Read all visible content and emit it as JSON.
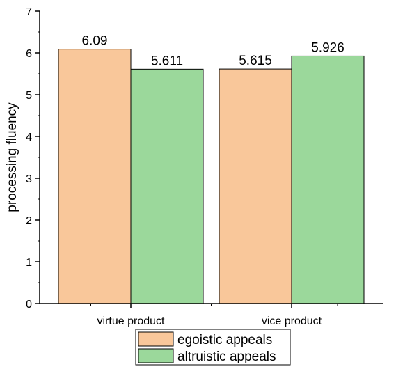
{
  "chart_data": {
    "type": "bar",
    "title": "",
    "xlabel": "",
    "ylabel": "processing fluency",
    "categories": [
      "virtue product",
      "vice product"
    ],
    "ylim": [
      0,
      7
    ],
    "yticks": [
      0,
      1,
      2,
      3,
      4,
      5,
      6,
      7
    ],
    "grid": false,
    "legend_position": "bottom-center",
    "series": [
      {
        "name": "egoistic appeals",
        "color": "#f9c79a",
        "values": [
          6.09,
          5.615
        ],
        "labels": [
          "6.09",
          "5.615"
        ]
      },
      {
        "name": "altruistic appeals",
        "color": "#9bd89b",
        "values": [
          5.611,
          5.926
        ],
        "labels": [
          "5.611",
          "5.926"
        ]
      }
    ]
  }
}
